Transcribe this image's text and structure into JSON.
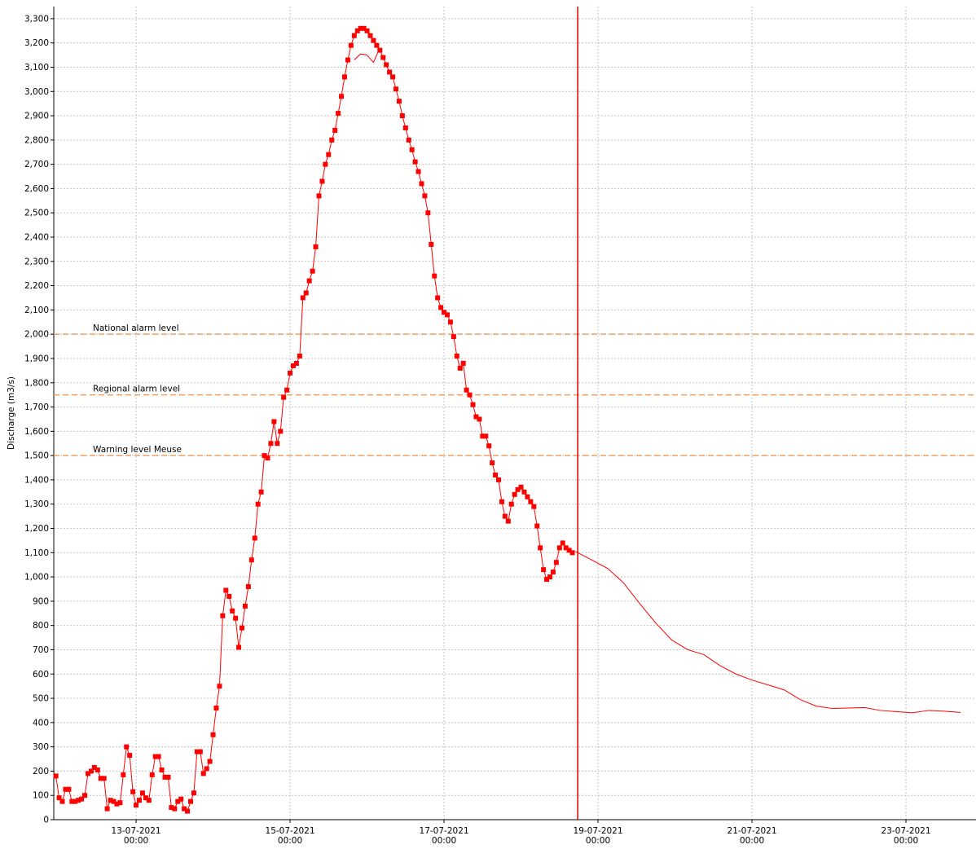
{
  "chart_data": {
    "type": "line",
    "y_label": "Discharge (m3/s)",
    "xlim": [
      "2021-07-11T22:20",
      "2021-07-23T21:50"
    ],
    "ylim": [
      0,
      3350
    ],
    "xticks": [
      {
        "value": "2021-07-13T00:00",
        "label": [
          "13-07-2021",
          "00:00"
        ]
      },
      {
        "value": "2021-07-15T00:00",
        "label": [
          "15-07-2021",
          "00:00"
        ]
      },
      {
        "value": "2021-07-17T00:00",
        "label": [
          "17-07-2021",
          "00:00"
        ]
      },
      {
        "value": "2021-07-19T00:00",
        "label": [
          "19-07-2021",
          "00:00"
        ]
      },
      {
        "value": "2021-07-21T00:00",
        "label": [
          "21-07-2021",
          "00:00"
        ]
      },
      {
        "value": "2021-07-23T00:00",
        "label": [
          "23-07-2021",
          "00:00"
        ]
      }
    ],
    "yticks": [
      0,
      100,
      200,
      300,
      400,
      500,
      600,
      700,
      800,
      900,
      {
        "value": 1000,
        "label": "1,000"
      },
      {
        "value": 1100,
        "label": "1,100"
      },
      {
        "value": 1200,
        "label": "1,200"
      },
      {
        "value": 1300,
        "label": "1,300"
      },
      {
        "value": 1400,
        "label": "1,400"
      },
      {
        "value": 1500,
        "label": "1,500"
      },
      {
        "value": 1600,
        "label": "1,600"
      },
      {
        "value": 1700,
        "label": "1,700"
      },
      {
        "value": 1800,
        "label": "1,800"
      },
      {
        "value": 1900,
        "label": "1,900"
      },
      {
        "value": 2000,
        "label": "2,000"
      },
      {
        "value": 2100,
        "label": "2,100"
      },
      {
        "value": 2200,
        "label": "2,200"
      },
      {
        "value": 2300,
        "label": "2,300"
      },
      {
        "value": 2400,
        "label": "2,400"
      },
      {
        "value": 2500,
        "label": "2,500"
      },
      {
        "value": 2600,
        "label": "2,600"
      },
      {
        "value": 2700,
        "label": "2,700"
      },
      {
        "value": 2800,
        "label": "2,800"
      },
      {
        "value": 2900,
        "label": "2,900"
      },
      {
        "value": 3000,
        "label": "3,000"
      },
      {
        "value": 3100,
        "label": "3,100"
      },
      {
        "value": 3200,
        "label": "3,200"
      },
      {
        "value": 3300,
        "label": "3,300"
      }
    ],
    "grid": true,
    "thresholds": [
      {
        "label": "National alarm level",
        "value": 2000,
        "color": "#f0a060"
      },
      {
        "label": "Regional alarm level",
        "value": 1750,
        "color": "#f0a060"
      },
      {
        "label": "Warning level Meuse",
        "value": 1500,
        "color": "#f0a060"
      }
    ],
    "vline": {
      "x": "2021-07-18T17:40",
      "color": "#e00000"
    },
    "series": [
      {
        "color": "#ff0000",
        "marker": "square",
        "x": [
          "2021-07-11T23:00",
          "2021-07-12T00:00",
          "2021-07-12T01:00",
          "2021-07-12T02:00",
          "2021-07-12T03:00",
          "2021-07-12T04:00",
          "2021-07-12T05:00",
          "2021-07-12T06:00",
          "2021-07-12T07:00",
          "2021-07-12T08:00",
          "2021-07-12T09:00",
          "2021-07-12T10:00",
          "2021-07-12T11:00",
          "2021-07-12T12:00",
          "2021-07-12T13:00",
          "2021-07-12T14:00",
          "2021-07-12T15:00",
          "2021-07-12T16:00",
          "2021-07-12T17:00",
          "2021-07-12T18:00",
          "2021-07-12T19:00",
          "2021-07-12T20:00",
          "2021-07-12T21:00",
          "2021-07-12T22:00",
          "2021-07-12T23:00",
          "2021-07-13T00:00",
          "2021-07-13T01:00",
          "2021-07-13T02:00",
          "2021-07-13T03:00",
          "2021-07-13T04:00",
          "2021-07-13T05:00",
          "2021-07-13T06:00",
          "2021-07-13T07:00",
          "2021-07-13T08:00",
          "2021-07-13T09:00",
          "2021-07-13T10:00",
          "2021-07-13T11:00",
          "2021-07-13T12:00",
          "2021-07-13T13:00",
          "2021-07-13T14:00",
          "2021-07-13T15:00",
          "2021-07-13T16:00",
          "2021-07-13T17:00",
          "2021-07-13T18:00",
          "2021-07-13T19:00",
          "2021-07-13T20:00",
          "2021-07-13T21:00",
          "2021-07-13T22:00",
          "2021-07-13T23:00",
          "2021-07-14T00:00",
          "2021-07-14T01:00",
          "2021-07-14T02:00",
          "2021-07-14T03:00",
          "2021-07-14T04:00",
          "2021-07-14T05:00",
          "2021-07-14T06:00",
          "2021-07-14T07:00",
          "2021-07-14T08:00",
          "2021-07-14T09:00",
          "2021-07-14T10:00",
          "2021-07-14T11:00",
          "2021-07-14T12:00",
          "2021-07-14T13:00",
          "2021-07-14T14:00",
          "2021-07-14T15:00",
          "2021-07-14T16:00",
          "2021-07-14T17:00",
          "2021-07-14T18:00",
          "2021-07-14T19:00",
          "2021-07-14T20:00",
          "2021-07-14T21:00",
          "2021-07-14T22:00",
          "2021-07-14T23:00",
          "2021-07-15T00:00",
          "2021-07-15T01:00",
          "2021-07-15T02:00",
          "2021-07-15T03:00",
          "2021-07-15T04:00",
          "2021-07-15T05:00",
          "2021-07-15T06:00",
          "2021-07-15T07:00",
          "2021-07-15T08:00",
          "2021-07-15T09:00",
          "2021-07-15T10:00",
          "2021-07-15T11:00",
          "2021-07-15T12:00",
          "2021-07-15T13:00",
          "2021-07-15T14:00",
          "2021-07-15T15:00",
          "2021-07-15T16:00",
          "2021-07-15T17:00",
          "2021-07-15T18:00",
          "2021-07-15T19:00",
          "2021-07-15T20:00",
          "2021-07-15T21:00",
          "2021-07-15T22:00",
          "2021-07-15T23:00",
          "2021-07-16T00:00",
          "2021-07-16T01:00",
          "2021-07-16T02:00",
          "2021-07-16T03:00",
          "2021-07-16T04:00",
          "2021-07-16T05:00",
          "2021-07-16T06:00",
          "2021-07-16T07:00",
          "2021-07-16T08:00",
          "2021-07-16T09:00",
          "2021-07-16T10:00",
          "2021-07-16T11:00",
          "2021-07-16T12:00",
          "2021-07-16T13:00",
          "2021-07-16T14:00",
          "2021-07-16T15:00",
          "2021-07-16T16:00",
          "2021-07-16T17:00",
          "2021-07-16T18:00",
          "2021-07-16T19:00",
          "2021-07-16T20:00",
          "2021-07-16T21:00",
          "2021-07-16T22:00",
          "2021-07-16T23:00",
          "2021-07-17T00:00",
          "2021-07-17T01:00",
          "2021-07-17T02:00",
          "2021-07-17T03:00",
          "2021-07-17T04:00",
          "2021-07-17T05:00",
          "2021-07-17T06:00",
          "2021-07-17T07:00",
          "2021-07-17T08:00",
          "2021-07-17T09:00",
          "2021-07-17T10:00",
          "2021-07-17T11:00",
          "2021-07-17T12:00",
          "2021-07-17T13:00",
          "2021-07-17T14:00",
          "2021-07-17T15:00",
          "2021-07-17T16:00",
          "2021-07-17T17:00",
          "2021-07-17T18:00",
          "2021-07-17T19:00",
          "2021-07-17T20:00",
          "2021-07-17T21:00",
          "2021-07-17T22:00",
          "2021-07-17T23:00",
          "2021-07-18T00:00",
          "2021-07-18T01:00",
          "2021-07-18T02:00",
          "2021-07-18T03:00",
          "2021-07-18T04:00",
          "2021-07-18T05:00",
          "2021-07-18T06:00",
          "2021-07-18T07:00",
          "2021-07-18T08:00",
          "2021-07-18T09:00",
          "2021-07-18T10:00",
          "2021-07-18T11:00",
          "2021-07-18T12:00",
          "2021-07-18T13:00",
          "2021-07-18T14:00",
          "2021-07-18T15:00",
          "2021-07-18T16:00"
        ],
        "values": [
          180,
          90,
          75,
          125,
          125,
          75,
          75,
          80,
          85,
          100,
          190,
          200,
          215,
          205,
          170,
          170,
          45,
          80,
          75,
          65,
          70,
          185,
          300,
          265,
          115,
          60,
          80,
          110,
          90,
          80,
          185,
          260,
          260,
          205,
          175,
          175,
          50,
          45,
          75,
          85,
          45,
          35,
          75,
          110,
          280,
          280,
          190,
          210,
          240,
          350,
          460,
          550,
          840,
          945,
          920,
          860,
          830,
          710,
          790,
          880,
          960,
          1070,
          1160,
          1300,
          1350,
          1500,
          1490,
          1550,
          1640,
          1550,
          1600,
          1740,
          1770,
          1840,
          1870,
          1880,
          1910,
          2150,
          2170,
          2220,
          2260,
          2360,
          2570,
          2630,
          2700,
          2740,
          2800,
          2840,
          2910,
          2980,
          3060,
          3130,
          3190,
          3230,
          3250,
          3260,
          3260,
          3250,
          3230,
          3210,
          3190,
          3170,
          3140,
          3110,
          3080,
          3060,
          3010,
          2960,
          2900,
          2850,
          2800,
          2760,
          2710,
          2670,
          2620,
          2570,
          2500,
          2370,
          2240,
          2150,
          2110,
          2090,
          2080,
          2050,
          1990,
          1910,
          1860,
          1880,
          1770,
          1750,
          1710,
          1660,
          1650,
          1580,
          1580,
          1540,
          1470,
          1420,
          1400,
          1310,
          1250,
          1230,
          1300,
          1340,
          1360,
          1370,
          1350,
          1330,
          1310,
          1290,
          1210,
          1120,
          1030,
          990,
          1000,
          1020,
          1060,
          1120,
          1140,
          1120,
          1110,
          1100
        ]
      },
      {
        "color": "#ff0000",
        "marker": "none",
        "x": [
          "2021-07-15T20:00",
          "2021-07-15T22:00",
          "2021-07-16T00:00",
          "2021-07-16T02:00",
          "2021-07-16T04:00",
          "2021-07-16T06:00",
          "2021-07-18T17:00",
          "2021-07-18T22:00",
          "2021-07-19T03:00",
          "2021-07-19T08:00",
          "2021-07-19T13:00",
          "2021-07-19T18:00",
          "2021-07-19T23:00",
          "2021-07-20T04:00",
          "2021-07-20T09:00",
          "2021-07-20T14:00",
          "2021-07-20T19:00",
          "2021-07-21T00:00",
          "2021-07-21T05:00",
          "2021-07-21T10:00",
          "2021-07-21T15:00",
          "2021-07-21T20:00",
          "2021-07-22T01:00",
          "2021-07-22T06:00",
          "2021-07-22T11:00",
          "2021-07-22T16:00",
          "2021-07-22T21:00",
          "2021-07-23T02:00",
          "2021-07-23T07:00",
          "2021-07-23T12:00",
          "2021-07-23T17:00"
        ],
        "values": [
          3130,
          3155,
          3150,
          3120,
          3180,
          null,
          1105,
          1070,
          1035,
          975,
          890,
          810,
          740,
          700,
          680,
          635,
          600,
          575,
          555,
          535,
          495,
          468,
          458,
          460,
          462,
          450,
          445,
          440,
          450,
          447,
          442
        ]
      }
    ]
  }
}
